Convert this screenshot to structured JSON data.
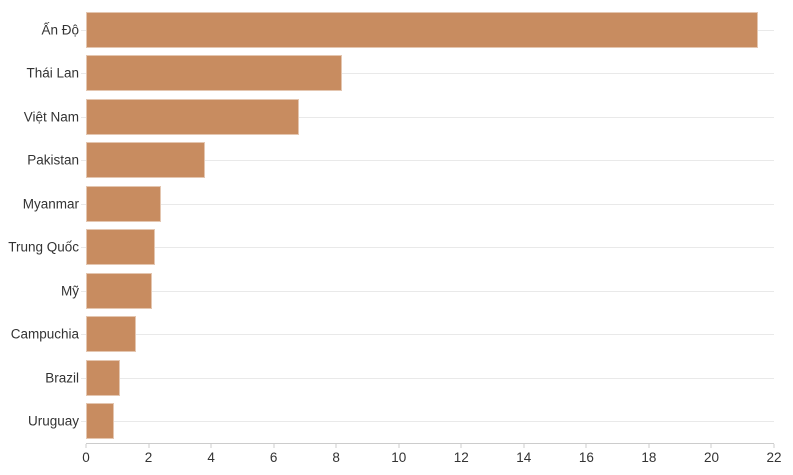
{
  "chart_data": {
    "type": "bar",
    "orientation": "horizontal",
    "title": "",
    "xlabel": "",
    "ylabel": "",
    "categories": [
      "Ấn Độ",
      "Thái Lan",
      "Việt Nam",
      "Pakistan",
      "Myanmar",
      "Trung Quốc",
      "Mỹ",
      "Campuchia",
      "Brazil",
      "Uruguay"
    ],
    "values": [
      21.5,
      8.2,
      6.8,
      3.8,
      2.4,
      2.2,
      2.1,
      1.6,
      1.1,
      0.9
    ],
    "x_ticks": [
      0,
      2,
      4,
      6,
      8,
      10,
      12,
      14,
      16,
      18,
      20,
      22
    ],
    "xlim": [
      0,
      22
    ],
    "grid": "horizontal row lines only",
    "legend": "none",
    "bar_color": "#c88c60",
    "gridline_color": "#e9e9e9",
    "axis_line_color": "#cccccc",
    "text_color": "#333333",
    "background_color": "#ffffff"
  }
}
